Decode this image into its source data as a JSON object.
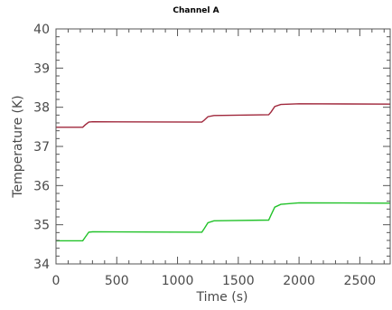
{
  "chart_data": {
    "type": "line",
    "title": "Channel A",
    "xlabel": "Time (s)",
    "ylabel": "Temperature (K)",
    "xlim": [
      0,
      2750
    ],
    "ylim": [
      34,
      40
    ],
    "xticks": [
      0,
      500,
      1000,
      1500,
      2000,
      2500
    ],
    "yticks": [
      34,
      35,
      36,
      37,
      38,
      39,
      40
    ],
    "xtick_labels": [
      "0",
      "500",
      "1000",
      "1500",
      "2000",
      "2500"
    ],
    "ytick_labels": [
      "34",
      "35",
      "36",
      "37",
      "38",
      "39",
      "40"
    ],
    "grid": false,
    "series": [
      {
        "color": "#a0283c",
        "x": [
          0,
          220,
          240,
          270,
          300,
          1200,
          1220,
          1250,
          1300,
          1750,
          1770,
          1800,
          1850,
          2000,
          2750
        ],
        "y": [
          37.49,
          37.49,
          37.55,
          37.62,
          37.63,
          37.62,
          37.67,
          37.76,
          37.79,
          37.81,
          37.88,
          38.02,
          38.07,
          38.09,
          38.08
        ]
      },
      {
        "color": "#22c22a",
        "x": [
          0,
          220,
          240,
          270,
          300,
          1200,
          1220,
          1250,
          1300,
          1750,
          1770,
          1800,
          1850,
          2000,
          2750
        ],
        "y": [
          34.59,
          34.59,
          34.68,
          34.81,
          34.82,
          34.81,
          34.9,
          35.05,
          35.1,
          35.12,
          35.25,
          35.45,
          35.52,
          35.56,
          35.55
        ]
      }
    ]
  }
}
